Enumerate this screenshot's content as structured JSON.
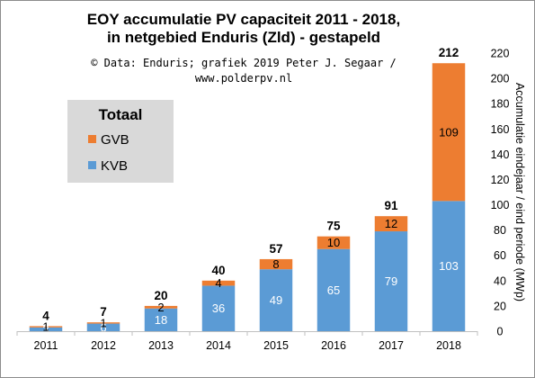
{
  "chart_data": {
    "type": "bar",
    "stacked": true,
    "title_lines": [
      "EOY accumulatie  PV capaciteit  2011 - 2018,",
      "in netgebied Enduris  (Zld) - gestapeld"
    ],
    "credit_lines": [
      "© Data: Enduris;  grafiek 2019 Peter J. Segaar /",
      "www.polderpv.nl"
    ],
    "categories": [
      "2011",
      "2012",
      "2013",
      "2014",
      "2015",
      "2016",
      "2017",
      "2018"
    ],
    "series": [
      {
        "name": "KVB",
        "color": "#5b9bd5",
        "values": [
          3,
          6,
          18,
          36,
          49,
          65,
          79,
          103
        ]
      },
      {
        "name": "GVB",
        "color": "#ed7d31",
        "values": [
          1,
          1,
          2,
          4,
          8,
          10,
          12,
          109
        ]
      }
    ],
    "totals": [
      "4",
      "7",
      "20",
      "40",
      "57",
      "75",
      "91",
      "212"
    ],
    "ylabel": "Accumulatie eindejaar / eind periode (MWp)",
    "ylim": [
      0,
      220
    ],
    "yticks": [
      0,
      20,
      40,
      60,
      80,
      100,
      120,
      140,
      160,
      180,
      200,
      220
    ],
    "y_axis_position": "right",
    "grid": false,
    "legend": {
      "title": "Totaal",
      "placement": "upper-left",
      "background": "#d9d9d9"
    }
  }
}
